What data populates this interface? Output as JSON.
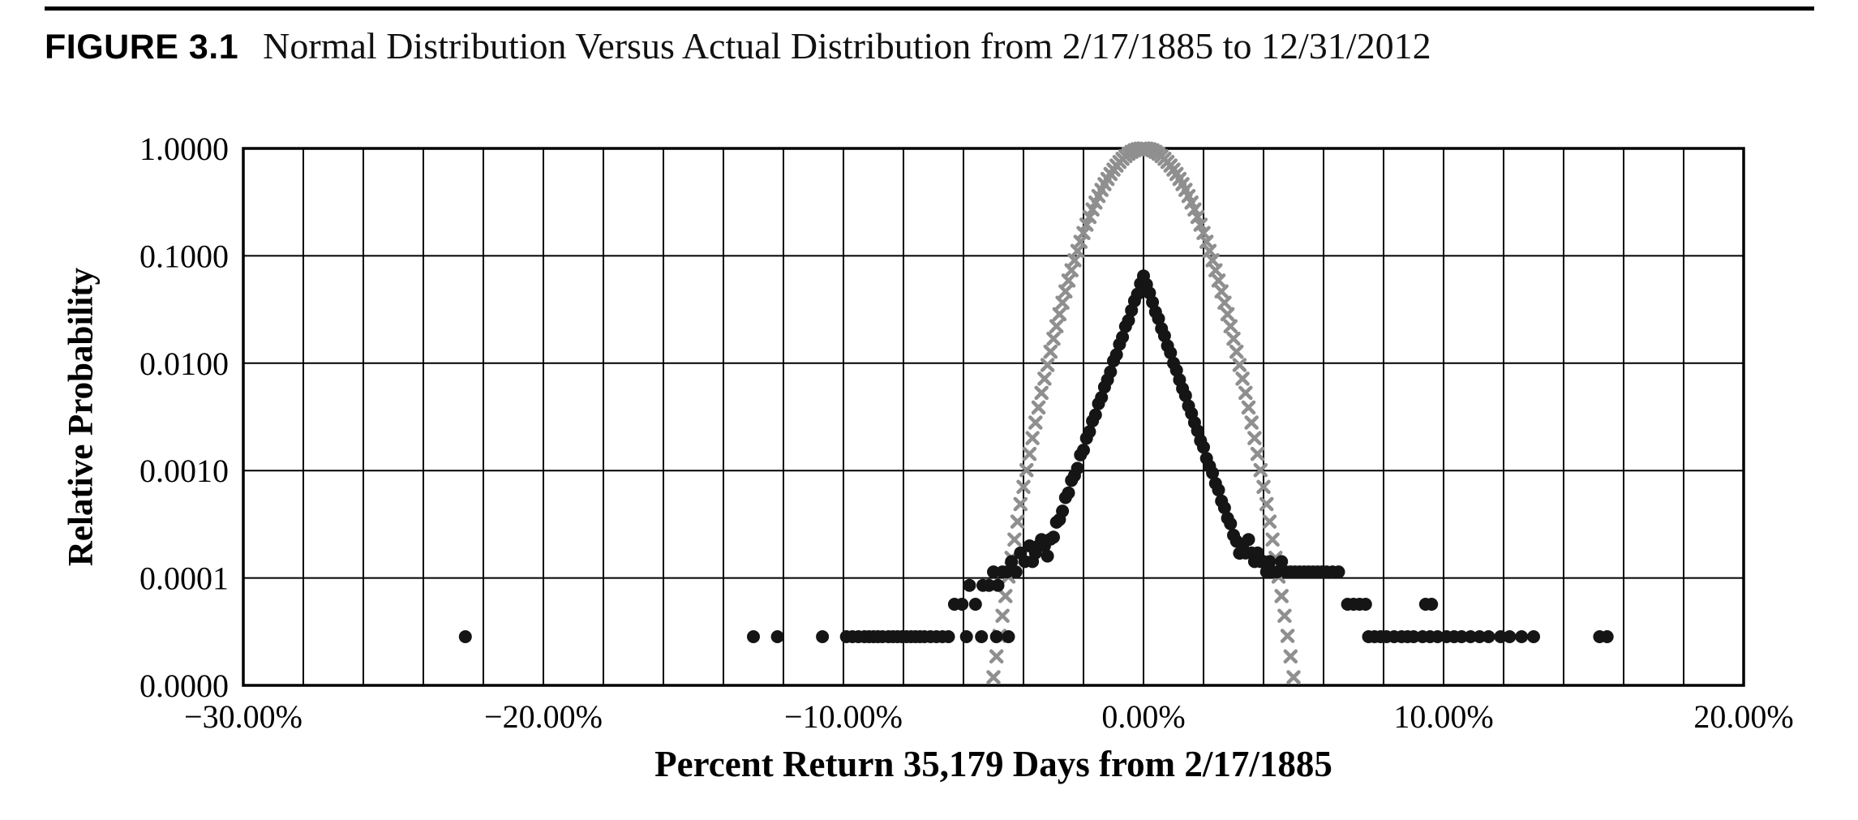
{
  "header": {
    "figure_label": "FIGURE 3.1",
    "title": "Normal Distribution Versus Actual Distribution from 2/17/1885 to 12/31/2012"
  },
  "colors": {
    "background": "#ffffff",
    "grid": "#000000",
    "border": "#000000",
    "rule": "#000000",
    "normal_series": "#8f8f8f",
    "actual_series": "#151515"
  },
  "chart_data": {
    "type": "scatter",
    "title": "Normal Distribution Versus Actual Distribution from 2/17/1885 to 12/31/2012",
    "xlabel": "Percent Return 35,179 Days from 2/17/1885",
    "ylabel": "Relative Probability",
    "grid": true,
    "legend": "none",
    "x_axis": {
      "min": -30,
      "max": 20,
      "gridline_step": 2,
      "tick_values": [
        -30,
        -20,
        -10,
        0,
        10,
        20
      ],
      "tick_labels": [
        "−30.00%",
        "−20.00%",
        "−10.00%",
        "0.00%",
        "10.00%",
        "20.00%"
      ]
    },
    "y_axis": {
      "scale": "log",
      "min": 1e-05,
      "max": 1,
      "tick_values": [
        1,
        0.1,
        0.01,
        0.001,
        0.0001,
        1e-05
      ],
      "tick_labels": [
        "1.0000",
        "0.1000",
        "0.0100",
        "0.0010",
        "0.0001",
        "0.0000"
      ]
    },
    "series": [
      {
        "id": "normal",
        "name": "Normal Distribution",
        "marker": "x",
        "color": "#8f8f8f",
        "points": [
          [
            -5.0,
            1.19e-05
          ],
          [
            -4.9,
            1.86e-05
          ],
          [
            -4.8,
            2.89e-05
          ],
          [
            -4.7,
            4.45e-05
          ],
          [
            -4.6,
            6.78e-05
          ],
          [
            -4.5,
            0.000103
          ],
          [
            -4.4,
            0.000154
          ],
          [
            -4.3,
            0.000228
          ],
          [
            -4.2,
            0.000335
          ],
          [
            -4.1,
            0.000488
          ],
          [
            -4.0,
            0.000705
          ],
          [
            -3.9,
            0.00101
          ],
          [
            -3.8,
            0.00143
          ],
          [
            -3.7,
            0.00201
          ],
          [
            -3.6,
            0.0028
          ],
          [
            -3.5,
            0.00387
          ],
          [
            -3.4,
            0.00529
          ],
          [
            -3.3,
            0.00717
          ],
          [
            -3.2,
            0.00962
          ],
          [
            -3.1,
            0.0128
          ],
          [
            -3.0,
            0.0169
          ],
          [
            -2.9,
            0.0221
          ],
          [
            -2.8,
            0.0286
          ],
          [
            -2.7,
            0.0366
          ],
          [
            -2.6,
            0.0466
          ],
          [
            -2.5,
            0.0588
          ],
          [
            -2.4,
            0.0734
          ],
          [
            -2.3,
            0.0908
          ],
          [
            -2.2,
            0.111
          ],
          [
            -2.1,
            0.135
          ],
          [
            -2.0,
            0.163
          ],
          [
            -1.9,
            0.195
          ],
          [
            -1.8,
            0.23
          ],
          [
            -1.7,
            0.27
          ],
          [
            -1.6,
            0.313
          ],
          [
            -1.5,
            0.36
          ],
          [
            -1.4,
            0.411
          ],
          [
            -1.3,
            0.465
          ],
          [
            -1.2,
            0.52
          ],
          [
            -1.1,
            0.578
          ],
          [
            -1.0,
            0.635
          ],
          [
            -0.9,
            0.693
          ],
          [
            -0.8,
            0.748
          ],
          [
            -0.7,
            0.801
          ],
          [
            -0.6,
            0.849
          ],
          [
            -0.5,
            0.893
          ],
          [
            -0.4,
            0.93
          ],
          [
            -0.3,
            0.96
          ],
          [
            -0.2,
            0.982
          ],
          [
            -0.1,
            0.995
          ],
          [
            0.0,
            1.0
          ],
          [
            0.1,
            0.995
          ],
          [
            0.2,
            0.982
          ],
          [
            0.3,
            0.96
          ],
          [
            0.4,
            0.93
          ],
          [
            0.5,
            0.893
          ],
          [
            0.6,
            0.849
          ],
          [
            0.7,
            0.801
          ],
          [
            0.8,
            0.748
          ],
          [
            0.9,
            0.693
          ],
          [
            1.0,
            0.635
          ],
          [
            1.1,
            0.578
          ],
          [
            1.2,
            0.52
          ],
          [
            1.3,
            0.465
          ],
          [
            1.4,
            0.411
          ],
          [
            1.5,
            0.36
          ],
          [
            1.6,
            0.313
          ],
          [
            1.7,
            0.27
          ],
          [
            1.8,
            0.23
          ],
          [
            1.9,
            0.195
          ],
          [
            2.0,
            0.163
          ],
          [
            2.1,
            0.135
          ],
          [
            2.2,
            0.111
          ],
          [
            2.3,
            0.0908
          ],
          [
            2.4,
            0.0734
          ],
          [
            2.5,
            0.0588
          ],
          [
            2.6,
            0.0466
          ],
          [
            2.7,
            0.0366
          ],
          [
            2.8,
            0.0286
          ],
          [
            2.9,
            0.0221
          ],
          [
            3.0,
            0.0169
          ],
          [
            3.1,
            0.0128
          ],
          [
            3.2,
            0.00962
          ],
          [
            3.3,
            0.00717
          ],
          [
            3.4,
            0.00529
          ],
          [
            3.5,
            0.00387
          ],
          [
            3.6,
            0.0028
          ],
          [
            3.7,
            0.00201
          ],
          [
            3.8,
            0.00143
          ],
          [
            3.9,
            0.00101
          ],
          [
            4.0,
            0.000705
          ],
          [
            4.1,
            0.000488
          ],
          [
            4.2,
            0.000335
          ],
          [
            4.3,
            0.000228
          ],
          [
            4.4,
            0.000154
          ],
          [
            4.5,
            0.000103
          ],
          [
            4.6,
            6.78e-05
          ],
          [
            4.7,
            4.45e-05
          ],
          [
            4.8,
            2.89e-05
          ],
          [
            4.9,
            1.86e-05
          ],
          [
            5.0,
            1.19e-05
          ]
        ]
      },
      {
        "id": "actual",
        "name": "Actual Distribution",
        "marker": "circle",
        "color": "#151515",
        "points": [
          [
            -22.6,
            2.84e-05
          ],
          [
            -13.0,
            2.84e-05
          ],
          [
            -12.2,
            2.84e-05
          ],
          [
            -10.7,
            2.84e-05
          ],
          [
            -9.9,
            2.84e-05
          ],
          [
            -9.7,
            2.84e-05
          ],
          [
            -9.5,
            2.84e-05
          ],
          [
            -9.3,
            2.84e-05
          ],
          [
            -9.15,
            2.84e-05
          ],
          [
            -9.0,
            2.84e-05
          ],
          [
            -8.85,
            2.84e-05
          ],
          [
            -8.7,
            2.84e-05
          ],
          [
            -8.5,
            2.84e-05
          ],
          [
            -8.35,
            2.84e-05
          ],
          [
            -8.2,
            2.84e-05
          ],
          [
            -8.05,
            2.84e-05
          ],
          [
            -7.9,
            2.84e-05
          ],
          [
            -7.75,
            2.84e-05
          ],
          [
            -7.6,
            2.84e-05
          ],
          [
            -7.45,
            2.84e-05
          ],
          [
            -7.3,
            2.84e-05
          ],
          [
            -7.1,
            2.84e-05
          ],
          [
            -6.9,
            2.84e-05
          ],
          [
            -6.7,
            2.84e-05
          ],
          [
            -6.5,
            2.84e-05
          ],
          [
            -5.9,
            2.84e-05
          ],
          [
            -5.4,
            2.84e-05
          ],
          [
            -4.9,
            2.84e-05
          ],
          [
            -4.5,
            2.84e-05
          ],
          [
            -6.3,
            5.69e-05
          ],
          [
            -6.05,
            5.69e-05
          ],
          [
            -5.8,
            8.53e-05
          ],
          [
            -5.6,
            5.69e-05
          ],
          [
            -5.35,
            8.53e-05
          ],
          [
            -5.15,
            8.53e-05
          ],
          [
            -5.0,
            0.000114
          ],
          [
            -4.85,
            8.53e-05
          ],
          [
            -4.7,
            0.000114
          ],
          [
            -4.55,
            0.000114
          ],
          [
            -4.4,
            0.000142
          ],
          [
            -4.25,
            0.000114
          ],
          [
            -4.1,
            0.000171
          ],
          [
            -3.95,
            0.000142
          ],
          [
            -3.8,
            0.000199
          ],
          [
            -3.7,
            0.000142
          ],
          [
            -3.6,
            0.000171
          ],
          [
            -3.5,
            0.000199
          ],
          [
            -3.4,
            0.000228
          ],
          [
            -3.3,
            0.000199
          ],
          [
            -3.2,
            0.00016
          ],
          [
            -3.1,
            0.00023
          ],
          [
            -3.0,
            0.00024
          ],
          [
            -2.9,
            0.00033
          ],
          [
            -2.8,
            0.00035
          ],
          [
            -2.7,
            0.00042
          ],
          [
            -2.6,
            0.00056
          ],
          [
            -2.5,
            0.00062
          ],
          [
            -2.4,
            0.00081
          ],
          [
            -2.3,
            0.0009
          ],
          [
            -2.2,
            0.00105
          ],
          [
            -2.1,
            0.0014
          ],
          [
            -2.0,
            0.00155
          ],
          [
            -1.9,
            0.002
          ],
          [
            -1.8,
            0.0023
          ],
          [
            -1.7,
            0.0029
          ],
          [
            -1.6,
            0.0033
          ],
          [
            -1.5,
            0.0042
          ],
          [
            -1.4,
            0.0048
          ],
          [
            -1.3,
            0.006
          ],
          [
            -1.2,
            0.007
          ],
          [
            -1.1,
            0.0083
          ],
          [
            -1.0,
            0.0105
          ],
          [
            -0.9,
            0.012
          ],
          [
            -0.8,
            0.015
          ],
          [
            -0.7,
            0.0175
          ],
          [
            -0.6,
            0.022
          ],
          [
            -0.5,
            0.025
          ],
          [
            -0.4,
            0.031
          ],
          [
            -0.3,
            0.038
          ],
          [
            -0.2,
            0.044
          ],
          [
            -0.1,
            0.055
          ],
          [
            0.0,
            0.065
          ],
          [
            0.1,
            0.054
          ],
          [
            0.2,
            0.045
          ],
          [
            0.3,
            0.037
          ],
          [
            0.4,
            0.03
          ],
          [
            0.5,
            0.026
          ],
          [
            0.6,
            0.021
          ],
          [
            0.7,
            0.018
          ],
          [
            0.8,
            0.0145
          ],
          [
            0.9,
            0.0125
          ],
          [
            1.0,
            0.01
          ],
          [
            1.1,
            0.0086
          ],
          [
            1.2,
            0.007
          ],
          [
            1.3,
            0.0058
          ],
          [
            1.4,
            0.005
          ],
          [
            1.5,
            0.004
          ],
          [
            1.6,
            0.0034
          ],
          [
            1.7,
            0.0028
          ],
          [
            1.8,
            0.00235
          ],
          [
            1.9,
            0.0019
          ],
          [
            2.0,
            0.00165
          ],
          [
            2.1,
            0.0013
          ],
          [
            2.2,
            0.0011
          ],
          [
            2.3,
            0.00095
          ],
          [
            2.4,
            0.00076
          ],
          [
            2.5,
            0.00066
          ],
          [
            2.6,
            0.00052
          ],
          [
            2.7,
            0.00045
          ],
          [
            2.8,
            0.00036
          ],
          [
            2.9,
            0.00032
          ],
          [
            3.0,
            0.00025
          ],
          [
            3.1,
            0.00022
          ],
          [
            3.2,
            0.00017
          ],
          [
            3.3,
            0.000199
          ],
          [
            3.4,
            0.000171
          ],
          [
            3.5,
            0.000228
          ],
          [
            3.6,
            0.000171
          ],
          [
            3.7,
            0.000142
          ],
          [
            3.8,
            0.000171
          ],
          [
            3.9,
            0.000142
          ],
          [
            4.0,
            0.000142
          ],
          [
            4.1,
            0.000114
          ],
          [
            4.2,
            0.000142
          ],
          [
            4.3,
            0.000114
          ],
          [
            4.45,
            0.000114
          ],
          [
            4.6,
            0.000142
          ],
          [
            4.75,
            0.000114
          ],
          [
            4.9,
            0.000114
          ],
          [
            5.05,
            0.000114
          ],
          [
            5.2,
            0.000114
          ],
          [
            5.35,
            0.000114
          ],
          [
            5.5,
            0.000114
          ],
          [
            5.65,
            0.000114
          ],
          [
            5.8,
            0.000114
          ],
          [
            5.95,
            0.000114
          ],
          [
            6.1,
            0.000114
          ],
          [
            6.3,
            0.000114
          ],
          [
            6.5,
            0.000114
          ],
          [
            6.8,
            5.69e-05
          ],
          [
            7.0,
            5.69e-05
          ],
          [
            7.2,
            5.69e-05
          ],
          [
            7.4,
            5.69e-05
          ],
          [
            9.4,
            5.69e-05
          ],
          [
            9.6,
            5.69e-05
          ],
          [
            7.5,
            2.84e-05
          ],
          [
            7.7,
            2.84e-05
          ],
          [
            7.9,
            2.84e-05
          ],
          [
            8.1,
            2.84e-05
          ],
          [
            8.35,
            2.84e-05
          ],
          [
            8.6,
            2.84e-05
          ],
          [
            8.8,
            2.84e-05
          ],
          [
            9.0,
            2.84e-05
          ],
          [
            9.3,
            2.84e-05
          ],
          [
            9.55,
            2.84e-05
          ],
          [
            9.8,
            2.84e-05
          ],
          [
            10.1,
            2.84e-05
          ],
          [
            10.35,
            2.84e-05
          ],
          [
            10.6,
            2.84e-05
          ],
          [
            10.9,
            2.84e-05
          ],
          [
            11.2,
            2.84e-05
          ],
          [
            11.5,
            2.84e-05
          ],
          [
            11.9,
            2.84e-05
          ],
          [
            12.2,
            2.84e-05
          ],
          [
            12.6,
            2.84e-05
          ],
          [
            13.0,
            2.84e-05
          ],
          [
            15.2,
            2.84e-05
          ],
          [
            15.45,
            2.84e-05
          ]
        ]
      }
    ]
  }
}
